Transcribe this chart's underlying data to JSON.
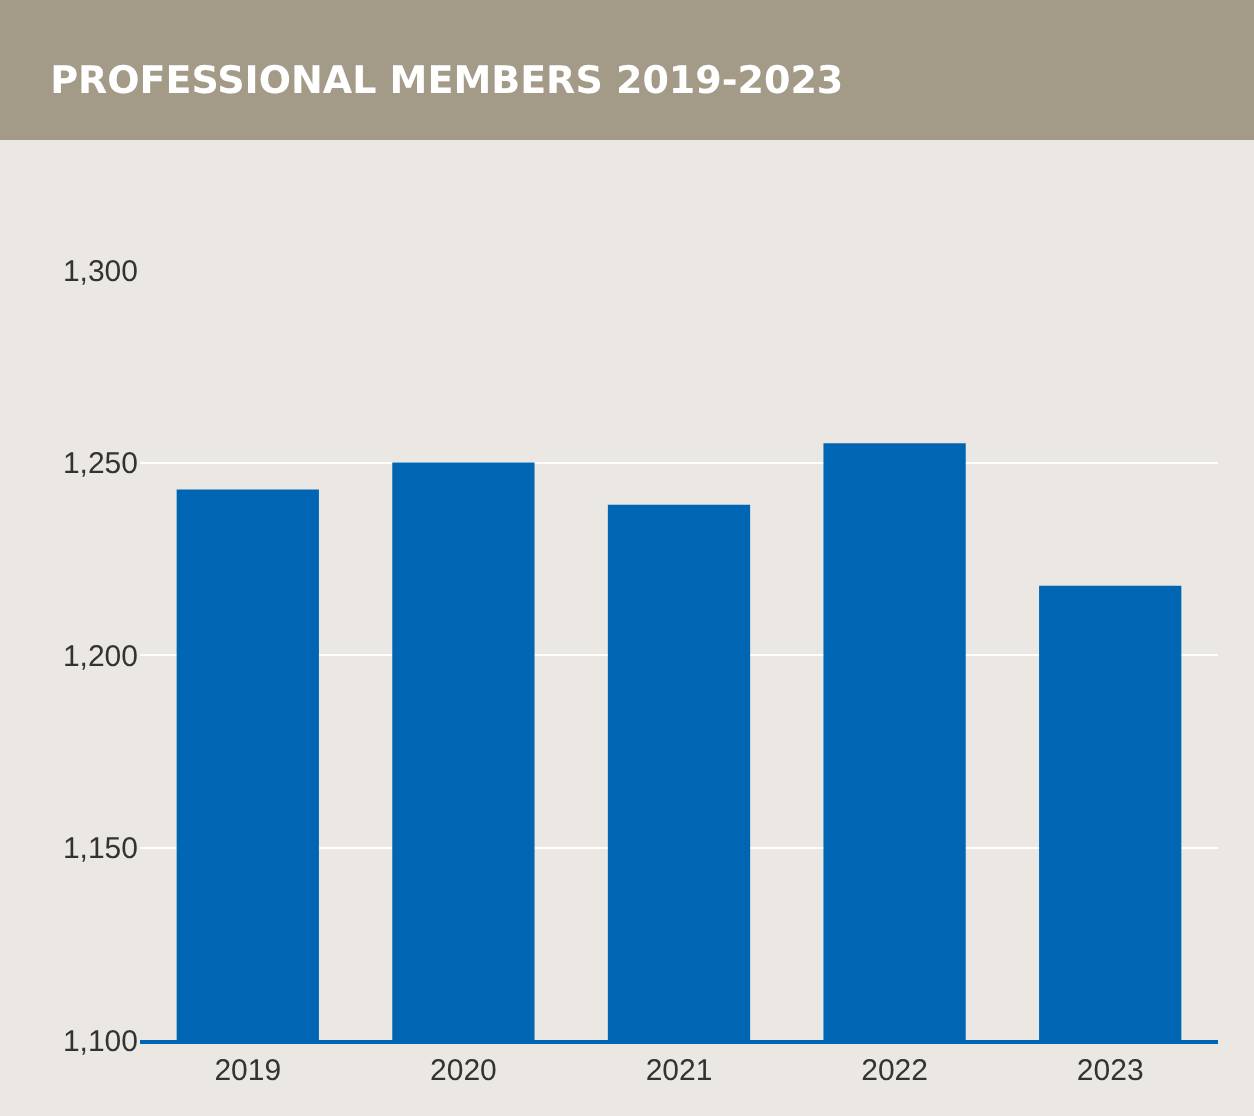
{
  "chart_data": {
    "type": "bar",
    "title": "PROFESSIONAL MEMBERS 2019-2023",
    "categories": [
      "2019",
      "2020",
      "2021",
      "2022",
      "2023"
    ],
    "values": [
      1243,
      1250,
      1239,
      1255,
      1218
    ],
    "color": "#0066b3",
    "ylim": [
      1100,
      1300
    ],
    "yticks": [
      {
        "value": 1100,
        "label": "1,100"
      },
      {
        "value": 1150,
        "label": "1,150"
      },
      {
        "value": 1200,
        "label": "1,200"
      },
      {
        "value": 1250,
        "label": "1,250"
      },
      {
        "value": 1300,
        "label": "1,300"
      }
    ],
    "grid": "y"
  }
}
